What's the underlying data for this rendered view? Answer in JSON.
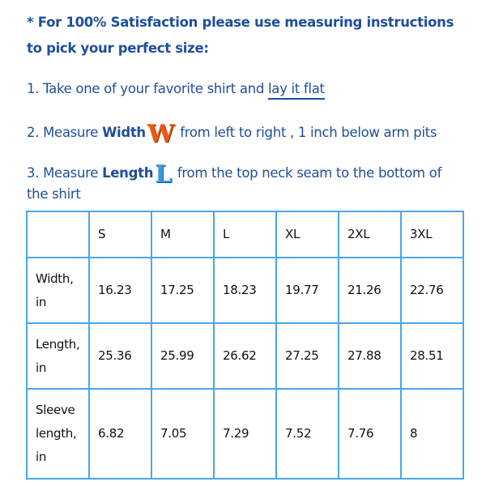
{
  "intro": {
    "line1": "* For 100% Satisfaction please use measuring instructions",
    "line2": "to pick your perfect size:"
  },
  "steps": [
    {
      "prefix": "1. Take one of your favorite shirt and ",
      "link": "lay it flat"
    },
    {
      "prefix": "2. Measure ",
      "bold": "Width",
      "letter": "W",
      "suffix": " from left to right , 1 inch below arm pits"
    },
    {
      "prefix": "3. Measure ",
      "bold": "Length",
      "letter": "L",
      "suffix": " from the top neck seam to the bottom of",
      "cont": "the shirt"
    }
  ],
  "table": {
    "headers": [
      "",
      "S",
      "M",
      "L",
      "XL",
      "2XL",
      "3XL"
    ],
    "rows": [
      {
        "label": [
          "Width,",
          "in"
        ],
        "values": [
          "16.23",
          "17.25",
          "18.23",
          "19.77",
          "21.26",
          "22.76"
        ]
      },
      {
        "label": [
          "Length,",
          "in"
        ],
        "values": [
          "25.36",
          "25.99",
          "26.62",
          "27.25",
          "27.88",
          "28.51"
        ]
      },
      {
        "label": [
          "Sleeve",
          "length,",
          "in"
        ],
        "values": [
          "6.82",
          "7.05",
          "7.29",
          "7.52",
          "7.76",
          "8"
        ]
      }
    ]
  },
  "colors": {
    "text": "#1f4e9c",
    "border": "#4aa6ee",
    "width_letter": "#e85a14",
    "length_letter": "#3a9ae0"
  }
}
